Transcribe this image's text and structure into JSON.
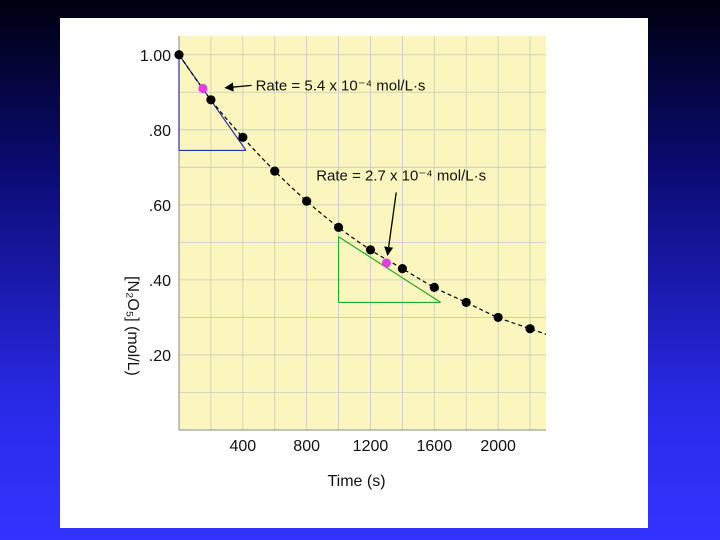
{
  "chart_data": {
    "type": "scatter",
    "xlabel": "Time (s)",
    "ylabel": "[N₂O₅] (mol/L)",
    "xlim": [
      0,
      2300
    ],
    "ylim": [
      0.0,
      1.05
    ],
    "x_ticks": [
      400,
      800,
      1200,
      1600,
      2000
    ],
    "x_tick_labels": [
      "400",
      "800",
      "1200",
      "1600",
      "2000"
    ],
    "y_ticks": [
      0.2,
      0.4,
      0.6,
      0.8,
      1.0
    ],
    "y_tick_labels": [
      ".20",
      ".40",
      ".60",
      ".80",
      "1.00"
    ],
    "grid": true,
    "series": [
      {
        "x": [
          0,
          200,
          400,
          600,
          800,
          1000,
          1200,
          1400,
          1600,
          1800,
          2000,
          2200
        ],
        "y": [
          1.0,
          0.88,
          0.78,
          0.69,
          0.61,
          0.54,
          0.48,
          0.43,
          0.38,
          0.34,
          0.3,
          0.27
        ],
        "color": "#000000"
      }
    ],
    "highlight_points": [
      {
        "x": 150,
        "y": 0.91,
        "color": "#e040e0"
      },
      {
        "x": 1300,
        "y": 0.445,
        "color": "#e040e0"
      }
    ],
    "tangents": [
      {
        "x0": 0,
        "y0": 1.0,
        "x1": 420,
        "y1": 0.745,
        "color": "#2233aa"
      },
      {
        "x0": 1000,
        "y0": 0.515,
        "x1": 1640,
        "y1": 0.34,
        "color": "#22aa22"
      }
    ],
    "annotations": [
      {
        "label": "Rate = 5.4 x 10⁻⁴ mol/L·s",
        "x": 480,
        "y": 0.905,
        "arrow_to": [
          240,
          0.91
        ]
      },
      {
        "label": "Rate = 2.7 x 10⁻⁴ mol/L·s",
        "x": 860,
        "y": 0.665,
        "arrow_to": [
          1300,
          0.445
        ]
      }
    ],
    "colors": {
      "plot_bg": "#fbf6bd",
      "grid": "#c8c8c8",
      "curve": "#000000"
    }
  }
}
